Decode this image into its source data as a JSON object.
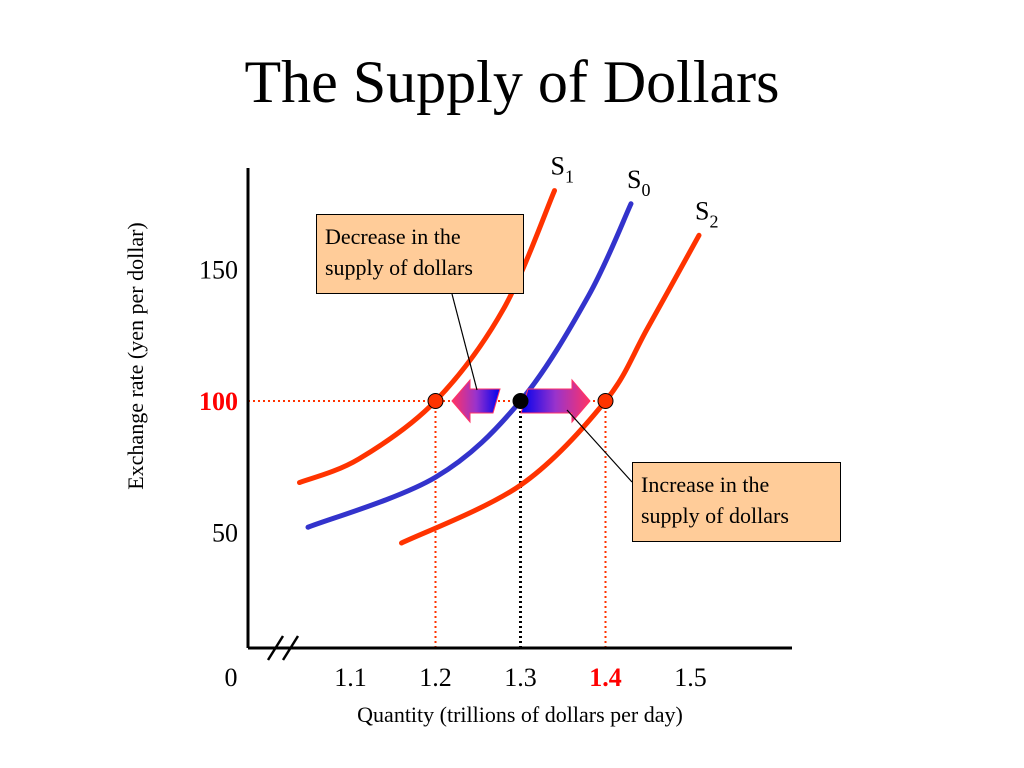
{
  "chart_data": {
    "type": "line",
    "title": "The Supply of Dollars",
    "xlabel": "Quantity (trillions of dollars per day)",
    "ylabel": "Exchange rate (yen per dollar)",
    "xlim": [
      1.0,
      1.65
    ],
    "ylim": [
      0,
      190
    ],
    "x_ticks": [
      {
        "value": 1.0,
        "label": "0",
        "highlight": false
      },
      {
        "value": 1.1,
        "label": "1.1",
        "highlight": false
      },
      {
        "value": 1.2,
        "label": "1.2",
        "highlight": false
      },
      {
        "value": 1.3,
        "label": "1.3",
        "highlight": false
      },
      {
        "value": 1.4,
        "label": "1.4",
        "highlight": true
      },
      {
        "value": 1.5,
        "label": "1.5",
        "highlight": false
      }
    ],
    "y_ticks": [
      {
        "value": 50,
        "label": "50",
        "highlight": false
      },
      {
        "value": 100,
        "label": "100",
        "highlight": true
      },
      {
        "value": 150,
        "label": "150",
        "highlight": false
      }
    ],
    "series": [
      {
        "name": "S",
        "subscript": "1",
        "color": "#ff3300",
        "points": [
          [
            1.04,
            69
          ],
          [
            1.11,
            78
          ],
          [
            1.2,
            100
          ],
          [
            1.28,
            135
          ],
          [
            1.34,
            180
          ]
        ]
      },
      {
        "name": "S",
        "subscript": "0",
        "color": "#3333cc",
        "points": [
          [
            1.05,
            52
          ],
          [
            1.2,
            71
          ],
          [
            1.3,
            100
          ],
          [
            1.38,
            140
          ],
          [
            1.43,
            175
          ]
        ]
      },
      {
        "name": "S",
        "subscript": "2",
        "color": "#ff3300",
        "points": [
          [
            1.16,
            46
          ],
          [
            1.3,
            68
          ],
          [
            1.4,
            100
          ],
          [
            1.45,
            128
          ],
          [
            1.51,
            163
          ]
        ]
      }
    ],
    "points": [
      {
        "x": 1.2,
        "y": 100,
        "color": "#ff3300"
      },
      {
        "x": 1.3,
        "y": 100,
        "color": "#000000"
      },
      {
        "x": 1.4,
        "y": 100,
        "color": "#ff3300"
      }
    ],
    "reference_lines": {
      "y": 100,
      "x": [
        1.2,
        1.3,
        1.4
      ]
    },
    "annotations": [
      {
        "text_lines": [
          "Decrease in the",
          "supply of dollars"
        ],
        "direction": "left"
      },
      {
        "text_lines": [
          "Increase in the",
          "supply of dollars"
        ],
        "direction": "right"
      }
    ],
    "axis_break": true,
    "grid": false,
    "highlight_color": "#ff0000"
  }
}
